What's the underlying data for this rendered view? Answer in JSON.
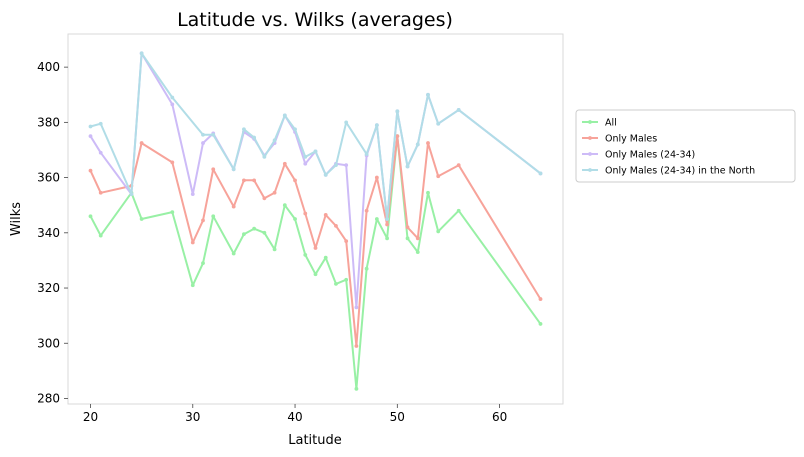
{
  "chart_data": {
    "type": "line",
    "title": "Latitude vs. Wilks (averages)",
    "xlabel": "Latitude",
    "ylabel": "Wilks",
    "xlim": [
      17.8,
      66.2
    ],
    "ylim": [
      278,
      412
    ],
    "xticks": [
      20,
      30,
      40,
      50,
      60
    ],
    "yticks": [
      280,
      300,
      320,
      340,
      360,
      380,
      400
    ],
    "grid": false,
    "legend_position": "right",
    "series": [
      {
        "name": "All",
        "color": "#98f0a5",
        "x": [
          20,
          21,
          24,
          25,
          28,
          30,
          31,
          32,
          34,
          35,
          36,
          37,
          38,
          39,
          40,
          41,
          42,
          43,
          44,
          45,
          46,
          47,
          48,
          49,
          50,
          51,
          52,
          53,
          54,
          56,
          64
        ],
        "y": [
          346,
          339,
          354.5,
          345,
          347.5,
          321,
          329,
          346,
          332.5,
          339.5,
          341.5,
          340,
          334,
          350,
          345,
          332,
          325,
          331,
          321.5,
          323,
          283.5,
          327,
          345,
          338,
          375,
          338,
          333,
          354.5,
          340.5,
          348,
          307
        ]
      },
      {
        "name": "Only Males",
        "color": "#f7a39a",
        "x": [
          20,
          21,
          24,
          25,
          28,
          30,
          31,
          32,
          34,
          35,
          36,
          37,
          38,
          39,
          40,
          41,
          42,
          43,
          44,
          45,
          46,
          47,
          48,
          49,
          50,
          51,
          52,
          53,
          54,
          56,
          64
        ],
        "y": [
          362.5,
          354.5,
          357,
          372.5,
          365.5,
          336.5,
          344.5,
          363,
          349.5,
          359,
          359,
          352.5,
          354.5,
          365,
          359,
          347,
          334.5,
          346.5,
          342.5,
          337,
          299,
          348,
          360,
          343,
          375,
          342,
          338,
          372.5,
          360.5,
          364.5,
          316
        ]
      },
      {
        "name": "Only Males (24-34)",
        "color": "#cdbbf7",
        "x": [
          20,
          21,
          24,
          25,
          28,
          30,
          31,
          32,
          34,
          35,
          36,
          37,
          38,
          39,
          40,
          41,
          42,
          43,
          44,
          45,
          46,
          47,
          48,
          49,
          50,
          51,
          52,
          53,
          54,
          56,
          64
        ],
        "y": [
          375,
          369,
          354,
          405,
          386.5,
          354,
          372.5,
          376,
          363,
          376.5,
          374,
          368,
          372.5,
          382.5,
          376.5,
          365,
          369.5,
          361,
          365,
          364.5,
          313,
          368,
          379,
          345,
          384,
          364,
          372,
          390,
          379.5,
          384.5,
          361.5
        ]
      },
      {
        "name": "Only Males (24-34) in the North",
        "color": "#b1dde7",
        "x": [
          20,
          21,
          24,
          25,
          28,
          31,
          32,
          34,
          35,
          36,
          37,
          38,
          39,
          40,
          41,
          42,
          43,
          44,
          45,
          47,
          48,
          49,
          50,
          51,
          52,
          53,
          54,
          56,
          64
        ],
        "y": [
          378.5,
          379.5,
          354,
          405,
          389,
          375.5,
          375.5,
          363,
          377.5,
          374.5,
          367.5,
          373.5,
          382.5,
          377.5,
          367.5,
          369.5,
          361,
          364.5,
          380,
          368.5,
          379,
          345,
          384,
          364,
          372,
          390,
          379.5,
          384.5,
          361.5
        ]
      }
    ]
  }
}
